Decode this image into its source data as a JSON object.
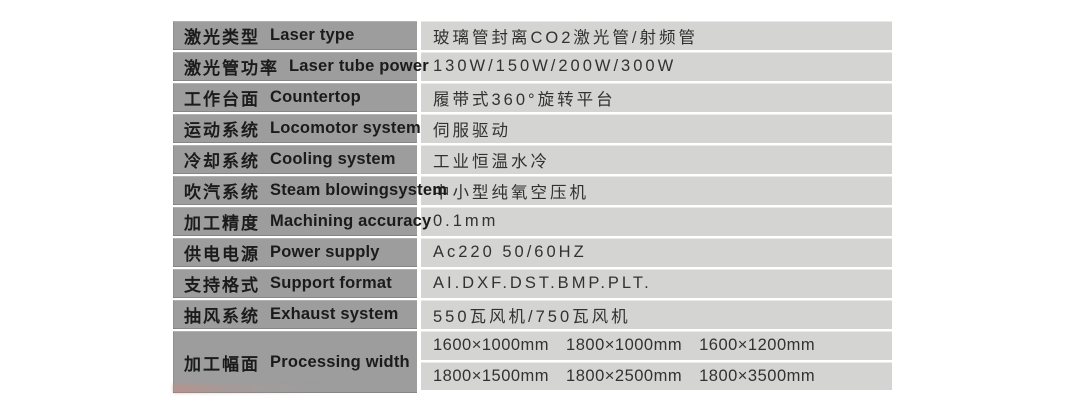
{
  "table": {
    "colors": {
      "label_bg": "#9d9d9d",
      "value_bg": "#d4d4d3",
      "page_bg": "#ffffff",
      "label_text": "#1b1b1b",
      "value_text": "#323232",
      "smudge_tint": "#c58d85"
    },
    "rows": [
      {
        "zh": "激光类型",
        "en": "Laser type",
        "value": "玻璃管封离CO2激光管/射频管"
      },
      {
        "zh": "激光管功率",
        "en": "Laser tube power",
        "value": "130W/150W/200W/300W"
      },
      {
        "zh": "工作台面",
        "en": "Countertop",
        "value": "履带式360°旋转平台"
      },
      {
        "zh": "运动系统",
        "en": "Locomotor system",
        "value": "伺服驱动"
      },
      {
        "zh": "冷却系统",
        "en": "Cooling system",
        "value": "工业恒温水冷"
      },
      {
        "zh": "吹汽系统",
        "en": "Steam blowingsystem",
        "value": "中小型纯氧空压机"
      },
      {
        "zh": "加工精度",
        "en": "Machining accuracy",
        "value": "0.1mm"
      },
      {
        "zh": "供电电源",
        "en": "Power supply",
        "value": "Ac220 50/60HZ"
      },
      {
        "zh": "支持格式",
        "en": "Support format",
        "value": "AI.DXF.DST.BMP.PLT."
      },
      {
        "zh": "抽风系统",
        "en": "Exhaust system",
        "value": "550瓦风机/750瓦风机"
      }
    ],
    "processing": {
      "zh": "加工幅面",
      "en": "Processing width",
      "line1": [
        "1600×1000mm",
        "1800×1000mm",
        "1600×1200mm"
      ],
      "line2": [
        "1800×1500mm",
        "1800×2500mm",
        "1800×3500mm"
      ]
    }
  }
}
